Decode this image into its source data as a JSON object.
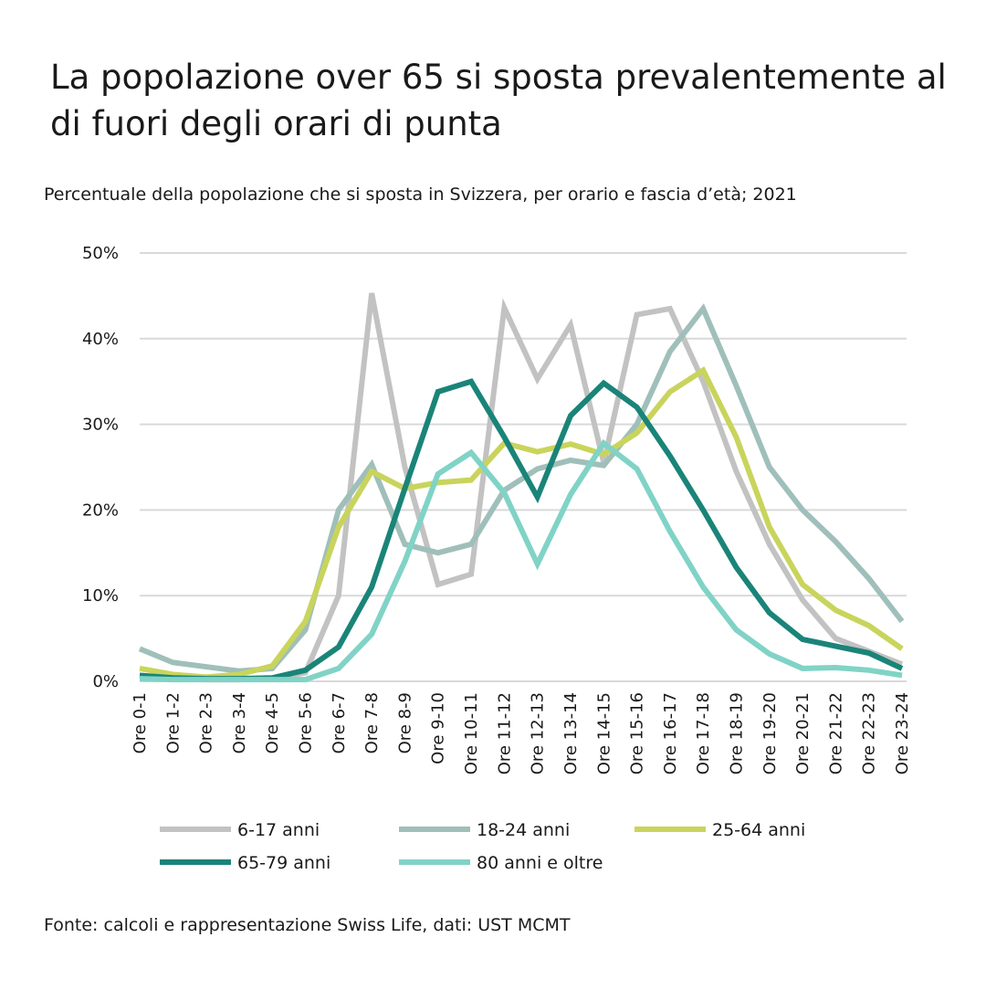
{
  "chart_data": {
    "type": "line",
    "title_lines": [
      "La popolazione over 65 si sposta prevalentemente al",
      "di fuori degli orari di punta"
    ],
    "subtitle": "Percentuale della popolazione che si sposta in Svizzera, per orario e fascia d’età; 2021",
    "source": "Fonte: calcoli e rappresentazione Swiss Life, dati: UST MCMT",
    "categories": [
      "Ore 0-1",
      "Ore 1-2",
      "Ore 2-3",
      "Ore 3-4",
      "Ore 4-5",
      "Ore 5-6",
      "Ore 6-7",
      "Ore 7-8",
      "Ore 8-9",
      "Ore 9-10",
      "Ore 10-11",
      "Ore 11-12",
      "Ore 12-13",
      "Ore 13-14",
      "Ore 14-15",
      "Ore 15-16",
      "Ore 16-17",
      "Ore 17-18",
      "Ore 18-19",
      "Ore 19-20",
      "Ore 20-21",
      "Ore 21-22",
      "Ore 22-23",
      "Ore 23-24"
    ],
    "series": [
      {
        "name": "6-17 anni",
        "color": "#c2c2c2",
        "values": [
          0.5,
          0.3,
          0.2,
          0.2,
          0.3,
          1,
          10,
          45.3,
          25,
          11.3,
          12.5,
          43.6,
          35.3,
          41.6,
          25.5,
          42.8,
          43.5,
          35,
          24.5,
          16,
          9.5,
          5,
          3.5,
          2
        ]
      },
      {
        "name": "18-24 anni",
        "color": "#a0bfba",
        "values": [
          3.8,
          2.2,
          1.7,
          1.2,
          1.5,
          6,
          20,
          25.3,
          16,
          15,
          16,
          22.3,
          24.8,
          25.8,
          25.2,
          30,
          38.5,
          43.5,
          34.5,
          25,
          20,
          16.3,
          12,
          7
        ]
      },
      {
        "name": "25-64 anni",
        "color": "#c9d45c",
        "values": [
          1.5,
          0.8,
          0.5,
          0.8,
          1.8,
          7,
          18,
          24.5,
          22.5,
          23.2,
          23.5,
          27.8,
          26.8,
          27.7,
          26.5,
          29,
          33.8,
          36.3,
          28.5,
          18,
          11.3,
          8.3,
          6.5,
          3.8
        ]
      },
      {
        "name": "65-79 anni",
        "color": "#1a8478",
        "values": [
          0.7,
          0.4,
          0.3,
          0.3,
          0.4,
          1.3,
          4,
          11,
          22.5,
          33.8,
          35,
          28.5,
          21.5,
          31,
          34.8,
          32,
          26.3,
          20,
          13.3,
          8,
          4.9,
          4.1,
          3.3,
          1.5
        ]
      },
      {
        "name": "80 anni e oltre",
        "color": "#80d3c6",
        "values": [
          0.3,
          0.2,
          0.2,
          0.2,
          0.2,
          0.2,
          1.5,
          5.5,
          14,
          24.2,
          26.7,
          22,
          13.7,
          21.8,
          27.8,
          24.8,
          17.5,
          11,
          6,
          3.2,
          1.5,
          1.6,
          1.3,
          0.7
        ]
      }
    ],
    "ylim": [
      0,
      50
    ],
    "yticks": [
      {
        "value": 0,
        "label": "0%"
      },
      {
        "value": 10,
        "label": "10%"
      },
      {
        "value": 20,
        "label": "20%"
      },
      {
        "value": 30,
        "label": "30%"
      },
      {
        "value": 40,
        "label": "40%"
      },
      {
        "value": 50,
        "label": "50%"
      }
    ],
    "grid": true
  }
}
